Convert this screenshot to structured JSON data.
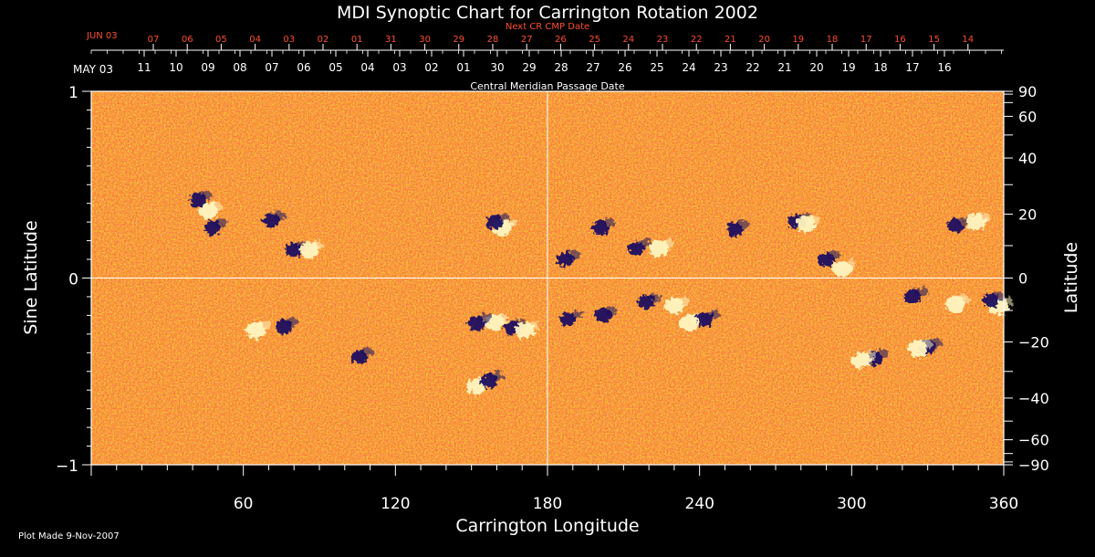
{
  "chart_data": {
    "type": "heatmap",
    "title": "MDI Synoptic Chart for Carrington Rotation 2002",
    "xlabel": "Carrington Longitude",
    "ylabel_left": "Sine Latitude",
    "ylabel_right": "Latitude",
    "top_axis_title": "Central Meridian Passage Date",
    "top_red_axis_title": "Next CR CMP Date",
    "xlim": [
      0,
      360
    ],
    "ylim": [
      -1,
      1
    ],
    "x_ticks": [
      60,
      120,
      180,
      240,
      300,
      360
    ],
    "y_ticks_left": [
      {
        "value": 1,
        "label": "1"
      },
      {
        "value": 0,
        "label": "0"
      },
      {
        "value": -1,
        "label": "−1"
      }
    ],
    "y_ticks_right": [
      {
        "value": 90,
        "label": "90"
      },
      {
        "value": 60,
        "label": "60"
      },
      {
        "value": 40,
        "label": "40"
      },
      {
        "value": 20,
        "label": "20"
      },
      {
        "value": 0,
        "label": "0"
      },
      {
        "value": -20,
        "label": "−20"
      },
      {
        "value": -40,
        "label": "−40"
      },
      {
        "value": -60,
        "label": "−60"
      },
      {
        "value": -90,
        "label": "−90"
      }
    ],
    "cmp_month_label": "MAY 03",
    "cmp_dates": [
      "11",
      "10",
      "09",
      "08",
      "07",
      "06",
      "05",
      "04",
      "03",
      "02",
      "01",
      "30",
      "29",
      "28",
      "27",
      "26",
      "25",
      "24",
      "23",
      "22",
      "21",
      "20",
      "19",
      "18",
      "17",
      "16"
    ],
    "next_cmp_month_label": "JUN 03",
    "next_cmp_dates": [
      "07",
      "06",
      "05",
      "04",
      "03",
      "02",
      "01",
      "31",
      "30",
      "29",
      "28",
      "27",
      "26",
      "25",
      "24",
      "23",
      "22",
      "21",
      "20",
      "19",
      "18",
      "17",
      "16",
      "15",
      "14"
    ],
    "grid": "crosshair at longitude 180 and sine latitude 0",
    "colors": {
      "background": "#000000",
      "field_base": "#e8481a",
      "positive_flux": "#fff4c0",
      "negative_flux": "#1a1060",
      "red_axis": "#ff4d2a"
    },
    "active_regions": [
      {
        "lon": 46,
        "sinlat": 0.36,
        "pos": true
      },
      {
        "lon": 42,
        "sinlat": 0.42,
        "pos": false
      },
      {
        "lon": 48,
        "sinlat": 0.27,
        "pos": false
      },
      {
        "lon": 71,
        "sinlat": 0.31,
        "pos": false
      },
      {
        "lon": 80,
        "sinlat": 0.15,
        "pos": false
      },
      {
        "lon": 86,
        "sinlat": 0.15,
        "pos": true
      },
      {
        "lon": 162,
        "sinlat": 0.27,
        "pos": true
      },
      {
        "lon": 159,
        "sinlat": 0.3,
        "pos": false
      },
      {
        "lon": 187,
        "sinlat": 0.1,
        "pos": false
      },
      {
        "lon": 201,
        "sinlat": 0.27,
        "pos": false
      },
      {
        "lon": 215,
        "sinlat": 0.16,
        "pos": false
      },
      {
        "lon": 224,
        "sinlat": 0.16,
        "pos": true
      },
      {
        "lon": 254,
        "sinlat": 0.26,
        "pos": false
      },
      {
        "lon": 278,
        "sinlat": 0.3,
        "pos": false
      },
      {
        "lon": 282,
        "sinlat": 0.29,
        "pos": true
      },
      {
        "lon": 290,
        "sinlat": 0.1,
        "pos": false
      },
      {
        "lon": 296,
        "sinlat": 0.05,
        "pos": true
      },
      {
        "lon": 341,
        "sinlat": 0.28,
        "pos": false
      },
      {
        "lon": 349,
        "sinlat": 0.3,
        "pos": true
      },
      {
        "lon": 159,
        "sinlat": -0.24,
        "pos": true
      },
      {
        "lon": 152,
        "sinlat": -0.24,
        "pos": false
      },
      {
        "lon": 166,
        "sinlat": -0.27,
        "pos": false
      },
      {
        "lon": 171,
        "sinlat": -0.28,
        "pos": true
      },
      {
        "lon": 230,
        "sinlat": -0.15,
        "pos": true
      },
      {
        "lon": 236,
        "sinlat": -0.24,
        "pos": true
      },
      {
        "lon": 242,
        "sinlat": -0.22,
        "pos": false
      },
      {
        "lon": 219,
        "sinlat": -0.13,
        "pos": false
      },
      {
        "lon": 202,
        "sinlat": -0.2,
        "pos": false
      },
      {
        "lon": 188,
        "sinlat": -0.22,
        "pos": false
      },
      {
        "lon": 76,
        "sinlat": -0.26,
        "pos": false
      },
      {
        "lon": 65,
        "sinlat": -0.28,
        "pos": true
      },
      {
        "lon": 106,
        "sinlat": -0.42,
        "pos": false
      },
      {
        "lon": 152,
        "sinlat": -0.58,
        "pos": true
      },
      {
        "lon": 157,
        "sinlat": -0.55,
        "pos": false
      },
      {
        "lon": 330,
        "sinlat": -0.37,
        "pos": false
      },
      {
        "lon": 326,
        "sinlat": -0.38,
        "pos": true
      },
      {
        "lon": 309,
        "sinlat": -0.43,
        "pos": false
      },
      {
        "lon": 304,
        "sinlat": -0.44,
        "pos": true
      },
      {
        "lon": 358,
        "sinlat": -0.15,
        "pos": true
      },
      {
        "lon": 355,
        "sinlat": -0.12,
        "pos": false
      },
      {
        "lon": 341,
        "sinlat": -0.14,
        "pos": true
      },
      {
        "lon": 324,
        "sinlat": -0.1,
        "pos": false
      }
    ]
  },
  "footer": {
    "plot_made": "Plot Made  9-Nov-2007"
  }
}
